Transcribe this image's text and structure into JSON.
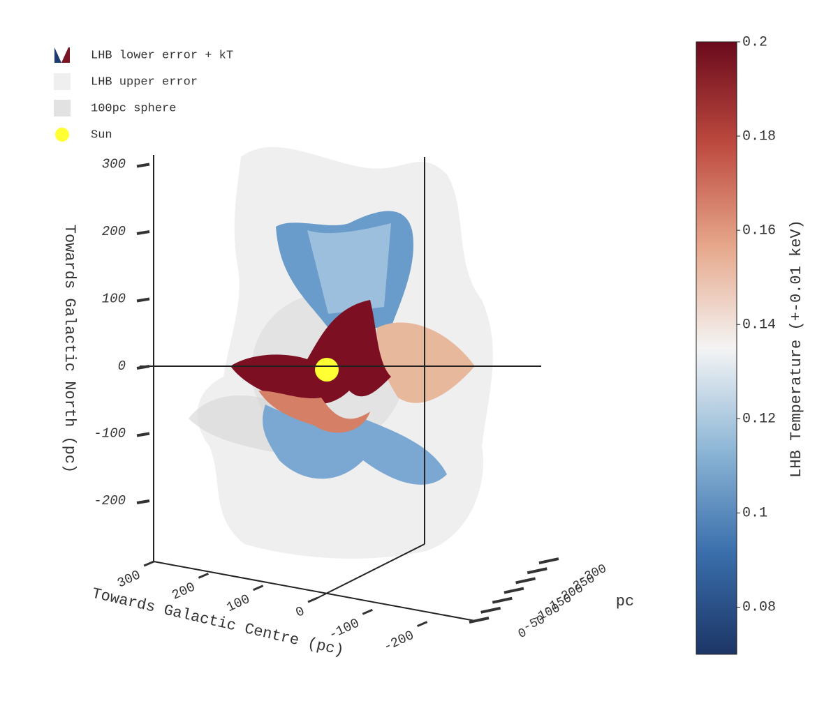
{
  "chart_data": {
    "type": "surface3d",
    "legend": [
      {
        "name": "LHB lower error + kT",
        "color": "#1f3a6e"
      },
      {
        "name": "LHB upper error",
        "color": "#efefef"
      },
      {
        "name": "100pc sphere",
        "color": "#e2e2e2"
      },
      {
        "name": "Sun",
        "color": "#ffff33"
      }
    ],
    "x_label": "Towards Galactic Centre (pc)",
    "xticks": [
      300,
      200,
      100,
      0,
      -100,
      -200
    ],
    "y_label": "pc",
    "yticks": [
      0,
      -50,
      -100,
      -150,
      -200,
      -250,
      -300
    ],
    "z_label": "Towards Galactic North (pc)",
    "zlim": [
      -300,
      300
    ],
    "zticks": [
      300,
      200,
      100,
      0,
      -100,
      -200
    ],
    "colorbar": {
      "label": "LHB Temperature (+-0.01 keV)",
      "clim": [
        0.07,
        0.2
      ],
      "ticks": [
        0.2,
        0.18,
        0.16,
        0.14,
        0.12,
        0.1,
        0.08
      ],
      "colors": [
        "#1c3566",
        "#3a6fac",
        "#8db6d6",
        "#f4f4f4",
        "#e6a78a",
        "#bd4a3f",
        "#6a0a1c"
      ]
    }
  }
}
